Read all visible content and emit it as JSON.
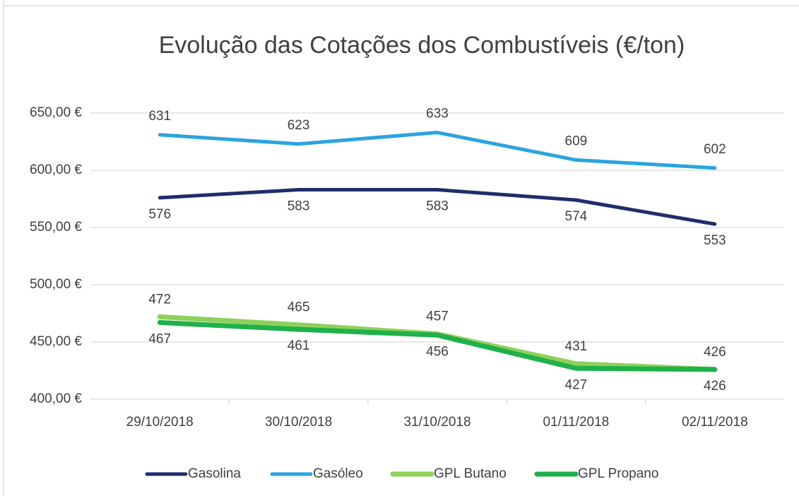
{
  "chart_data": {
    "type": "line",
    "title": "Evolução das Cotações dos Combustíveis (€/ton)",
    "categories": [
      "29/10/2018",
      "30/10/2018",
      "31/10/2018",
      "01/11/2018",
      "02/11/2018"
    ],
    "series": [
      {
        "name": "Gasolina",
        "color": "#1f2d6b",
        "values": [
          576,
          583,
          583,
          574,
          553
        ]
      },
      {
        "name": "Gasóleo",
        "color": "#2aa4e0",
        "values": [
          631,
          623,
          633,
          609,
          602
        ]
      },
      {
        "name": "GPL Butano",
        "color": "#8ed15a",
        "values": [
          472,
          465,
          457,
          431,
          426
        ]
      },
      {
        "name": "GPL Propano",
        "color": "#1fb14a",
        "values": [
          467,
          461,
          456,
          427,
          426
        ]
      }
    ],
    "ylim": [
      400,
      650
    ],
    "yticks": [
      {
        "value": 400,
        "label": "400,00 €"
      },
      {
        "value": 450,
        "label": "450,00 €"
      },
      {
        "value": 500,
        "label": "500,00 €"
      },
      {
        "value": 550,
        "label": "550,00 €"
      },
      {
        "value": 600,
        "label": "600,00 €"
      },
      {
        "value": 650,
        "label": "650,00 €"
      }
    ],
    "grid": true,
    "legend": "bottom"
  }
}
